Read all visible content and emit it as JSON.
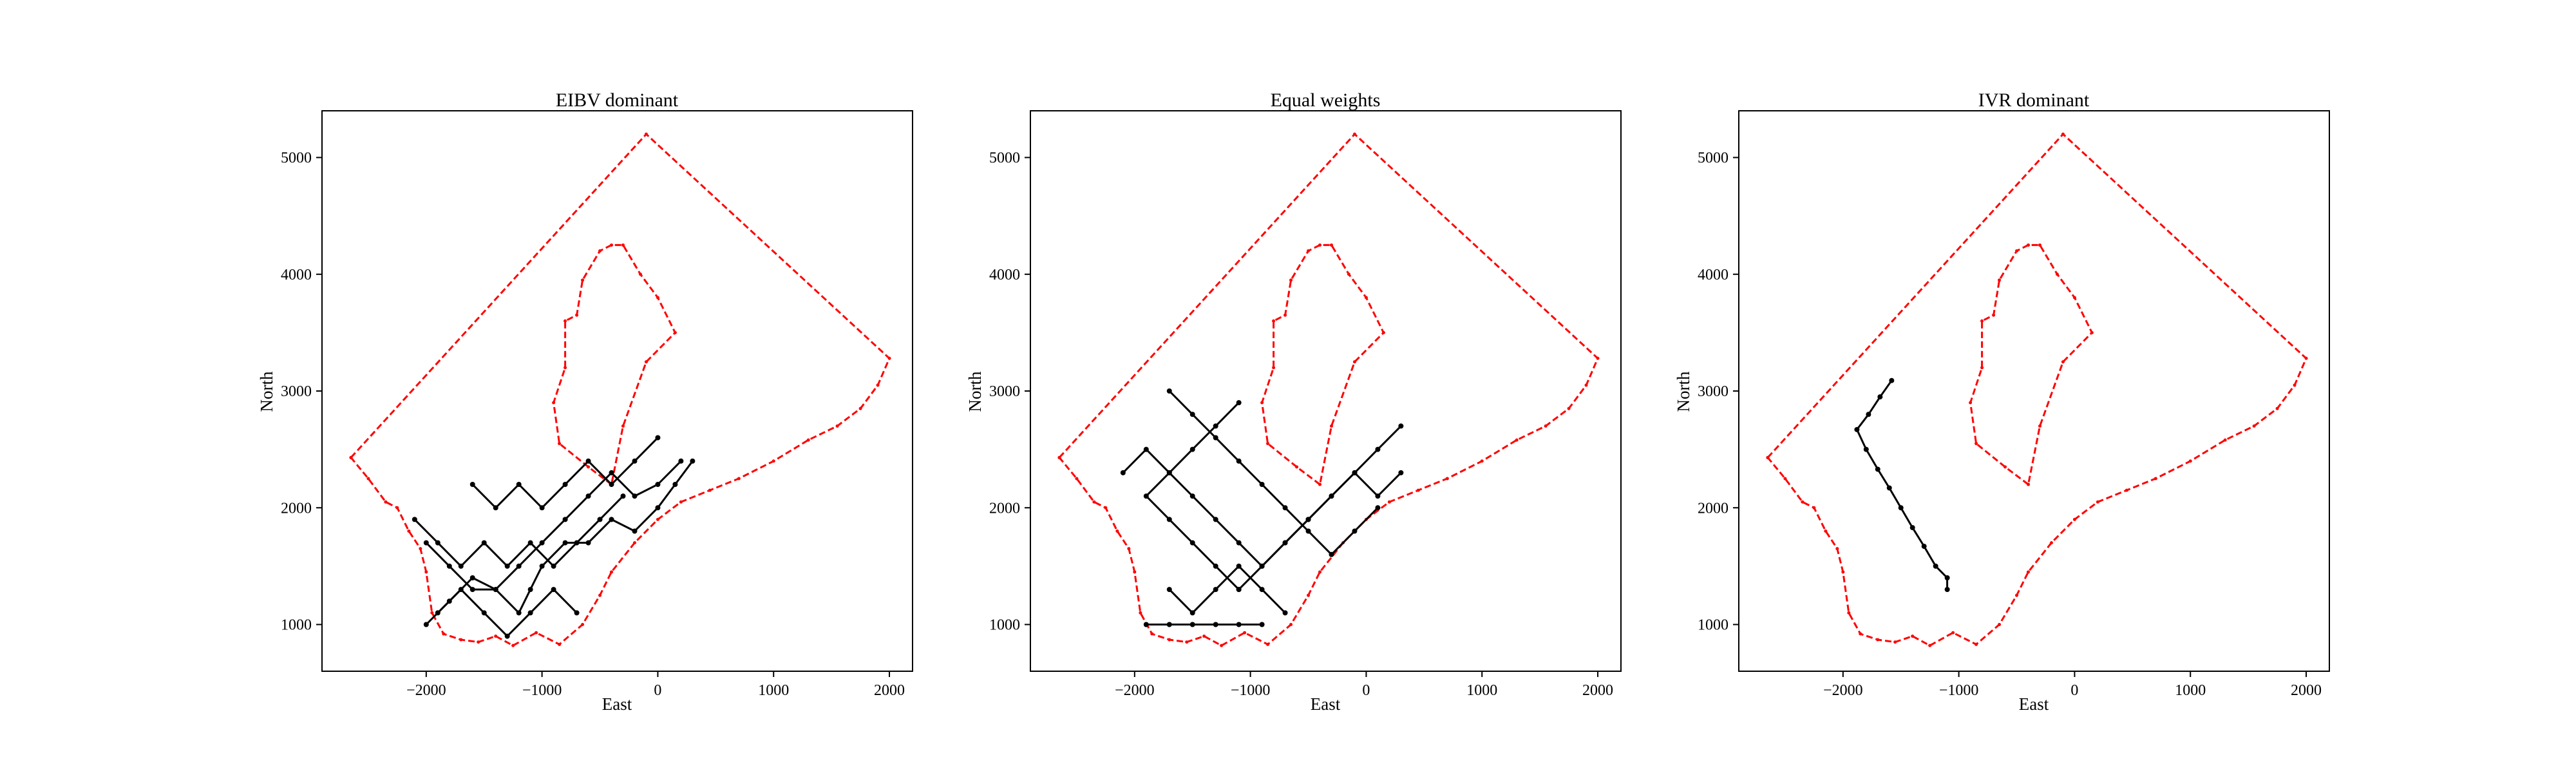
{
  "figure": {
    "panels": [
      {
        "title": "EIBV dominant",
        "xlabel": "East",
        "ylabel": "North"
      },
      {
        "title": "Equal weights",
        "xlabel": "East",
        "ylabel": "North"
      },
      {
        "title": "IVR dominant",
        "xlabel": "East",
        "ylabel": "North"
      }
    ],
    "colors": {
      "boundary": "#ff0000",
      "path": "#000000",
      "waypoint": "#000000",
      "frame": "#000000"
    },
    "xticks": [
      -2000,
      -1000,
      0,
      1000,
      2000
    ],
    "yticks": [
      1000,
      2000,
      3000,
      4000,
      5000
    ]
  },
  "chart_data": [
    {
      "type": "line",
      "title": "EIBV dominant",
      "xlabel": "East",
      "ylabel": "North",
      "xlim": [
        -2900,
        2200
      ],
      "ylim": [
        600,
        5400
      ],
      "xticks": [
        -2000,
        -1000,
        0,
        1000,
        2000
      ],
      "yticks": [
        1000,
        2000,
        3000,
        4000,
        5000
      ],
      "grid": false,
      "series": [
        {
          "role": "boundary",
          "x": [
            -2650,
            -100,
            2000,
            1900,
            1750,
            1550,
            1300,
            1000,
            700,
            450,
            200,
            0,
            -200,
            -400,
            -500,
            -650,
            -850,
            -1050,
            -1250,
            -1400,
            -1550,
            -1700,
            -1850,
            -1950,
            -2000,
            -2050,
            -2150,
            -2250,
            -2350,
            -2500,
            -2650
          ],
          "y": [
            2430,
            5200,
            3280,
            3050,
            2850,
            2700,
            2580,
            2400,
            2250,
            2150,
            2050,
            1900,
            1700,
            1450,
            1250,
            1000,
            830,
            930,
            820,
            900,
            850,
            870,
            920,
            1100,
            1450,
            1650,
            1800,
            2000,
            2050,
            2250,
            2430
          ]
        },
        {
          "role": "boundary",
          "x": [
            -400,
            -600,
            -850,
            -900,
            -800,
            -800,
            -700,
            -650,
            -500,
            -400,
            -300,
            -150,
            0,
            150,
            -100,
            -300,
            -400
          ],
          "y": [
            2200,
            2350,
            2550,
            2900,
            3200,
            3600,
            3650,
            3950,
            4200,
            4250,
            4250,
            4000,
            3800,
            3500,
            3250,
            2700,
            2200
          ]
        },
        {
          "role": "path",
          "x": [
            -2000,
            -1800,
            -1600,
            -1400,
            -1200,
            -1100,
            -1000,
            -800,
            -600,
            -400,
            -200,
            0,
            150,
            300
          ],
          "y": [
            1000,
            1200,
            1400,
            1300,
            1100,
            1300,
            1500,
            1700,
            1700,
            1900,
            1800,
            2000,
            2200,
            2400
          ]
        },
        {
          "role": "path",
          "x": [
            -2000,
            -1800,
            -1600,
            -1400,
            -1200,
            -1000,
            -800,
            -600,
            -400,
            -200,
            0,
            200
          ],
          "y": [
            1700,
            1500,
            1300,
            1300,
            1500,
            1700,
            1900,
            2100,
            2300,
            2100,
            2200,
            2400
          ]
        },
        {
          "role": "path",
          "x": [
            -2100,
            -1900,
            -1700,
            -1500,
            -1300,
            -1100,
            -900,
            -700,
            -500,
            -300
          ],
          "y": [
            1900,
            1700,
            1500,
            1700,
            1500,
            1700,
            1500,
            1700,
            1900,
            2100
          ]
        },
        {
          "role": "path",
          "x": [
            -1900,
            -1700,
            -1500,
            -1300,
            -1100,
            -900,
            -700
          ],
          "y": [
            1100,
            1300,
            1100,
            900,
            1100,
            1300,
            1100
          ]
        },
        {
          "role": "path",
          "x": [
            -1600,
            -1400,
            -1200,
            -1000,
            -800,
            -600,
            -400,
            -200,
            0
          ],
          "y": [
            2200,
            2000,
            2200,
            2000,
            2200,
            2400,
            2200,
            2400,
            2600
          ]
        }
      ]
    },
    {
      "type": "line",
      "title": "Equal weights",
      "xlabel": "East",
      "ylabel": "North",
      "xlim": [
        -2900,
        2200
      ],
      "ylim": [
        600,
        5400
      ],
      "xticks": [
        -2000,
        -1000,
        0,
        1000,
        2000
      ],
      "yticks": [
        1000,
        2000,
        3000,
        4000,
        5000
      ],
      "grid": false,
      "series": [
        {
          "role": "boundary",
          "x": [
            -2650,
            -100,
            2000,
            1900,
            1750,
            1550,
            1300,
            1000,
            700,
            450,
            200,
            0,
            -200,
            -400,
            -500,
            -650,
            -850,
            -1050,
            -1250,
            -1400,
            -1550,
            -1700,
            -1850,
            -1950,
            -2000,
            -2050,
            -2150,
            -2250,
            -2350,
            -2500,
            -2650
          ],
          "y": [
            2430,
            5200,
            3280,
            3050,
            2850,
            2700,
            2580,
            2400,
            2250,
            2150,
            2050,
            1900,
            1700,
            1450,
            1250,
            1000,
            830,
            930,
            820,
            900,
            850,
            870,
            920,
            1100,
            1450,
            1650,
            1800,
            2000,
            2050,
            2250,
            2430
          ]
        },
        {
          "role": "boundary",
          "x": [
            -400,
            -600,
            -850,
            -900,
            -800,
            -800,
            -700,
            -650,
            -500,
            -400,
            -300,
            -150,
            0,
            150,
            -100,
            -300,
            -400
          ],
          "y": [
            2200,
            2350,
            2550,
            2900,
            3200,
            3600,
            3650,
            3950,
            4200,
            4250,
            4250,
            4000,
            3800,
            3500,
            3250,
            2700,
            2200
          ]
        },
        {
          "role": "path",
          "x": [
            -1100,
            -900,
            -700,
            -500,
            -300,
            -100,
            100,
            300
          ],
          "y": [
            1300,
            1500,
            1700,
            1900,
            2100,
            2300,
            2500,
            2700
          ]
        },
        {
          "role": "path",
          "x": [
            -1100,
            -1300,
            -1500,
            -1700,
            -1900,
            -1700,
            -1500,
            -1300,
            -1100
          ],
          "y": [
            1300,
            1500,
            1700,
            1900,
            2100,
            2300,
            2500,
            2700,
            2900
          ]
        },
        {
          "role": "path",
          "x": [
            -1900,
            -1700,
            -1500,
            -1300,
            -1100,
            -900
          ],
          "y": [
            1000,
            1000,
            1000,
            1000,
            1000,
            1000
          ]
        },
        {
          "role": "path",
          "x": [
            -2100,
            -1900,
            -1700,
            -1500,
            -1300,
            -1100,
            -900,
            -700,
            -500,
            -300,
            -100,
            100,
            300
          ],
          "y": [
            2300,
            2500,
            2300,
            2100,
            1900,
            1700,
            1500,
            1700,
            1900,
            2100,
            2300,
            2100,
            2300
          ]
        },
        {
          "role": "path",
          "x": [
            -1700,
            -1500,
            -1300,
            -1100,
            -900,
            -700,
            -500,
            -300,
            -100,
            100
          ],
          "y": [
            3000,
            2800,
            2600,
            2400,
            2200,
            2000,
            1800,
            1600,
            1800,
            2000
          ]
        },
        {
          "role": "path",
          "x": [
            -1700,
            -1500,
            -1300,
            -1100,
            -900,
            -700
          ],
          "y": [
            1300,
            1100,
            1300,
            1500,
            1300,
            1100
          ]
        }
      ]
    },
    {
      "type": "line",
      "title": "IVR dominant",
      "xlabel": "East",
      "ylabel": "North",
      "xlim": [
        -2900,
        2200
      ],
      "ylim": [
        600,
        5400
      ],
      "xticks": [
        -2000,
        -1000,
        0,
        1000,
        2000
      ],
      "yticks": [
        1000,
        2000,
        3000,
        4000,
        5000
      ],
      "grid": false,
      "series": [
        {
          "role": "boundary",
          "x": [
            -2650,
            -100,
            2000,
            1900,
            1750,
            1550,
            1300,
            1000,
            700,
            450,
            200,
            0,
            -200,
            -400,
            -500,
            -650,
            -850,
            -1050,
            -1250,
            -1400,
            -1550,
            -1700,
            -1850,
            -1950,
            -2000,
            -2050,
            -2150,
            -2250,
            -2350,
            -2500,
            -2650
          ],
          "y": [
            2430,
            5200,
            3280,
            3050,
            2850,
            2700,
            2580,
            2400,
            2250,
            2150,
            2050,
            1900,
            1700,
            1450,
            1250,
            1000,
            830,
            930,
            820,
            900,
            850,
            870,
            920,
            1100,
            1450,
            1650,
            1800,
            2000,
            2050,
            2250,
            2430
          ]
        },
        {
          "role": "boundary",
          "x": [
            -400,
            -600,
            -850,
            -900,
            -800,
            -800,
            -700,
            -650,
            -500,
            -400,
            -300,
            -150,
            0,
            150,
            -100,
            -300,
            -400
          ],
          "y": [
            2200,
            2350,
            2550,
            2900,
            3200,
            3600,
            3650,
            3950,
            4200,
            4250,
            4250,
            4000,
            3800,
            3500,
            3250,
            2700,
            2200
          ]
        },
        {
          "role": "path",
          "x": [
            -1580,
            -1680,
            -1780,
            -1880,
            -1800,
            -1700,
            -1600,
            -1500,
            -1400,
            -1300,
            -1200,
            -1100,
            -1100
          ],
          "y": [
            3090,
            2950,
            2800,
            2670,
            2500,
            2330,
            2170,
            2000,
            1830,
            1670,
            1500,
            1400,
            1300
          ]
        }
      ]
    }
  ]
}
